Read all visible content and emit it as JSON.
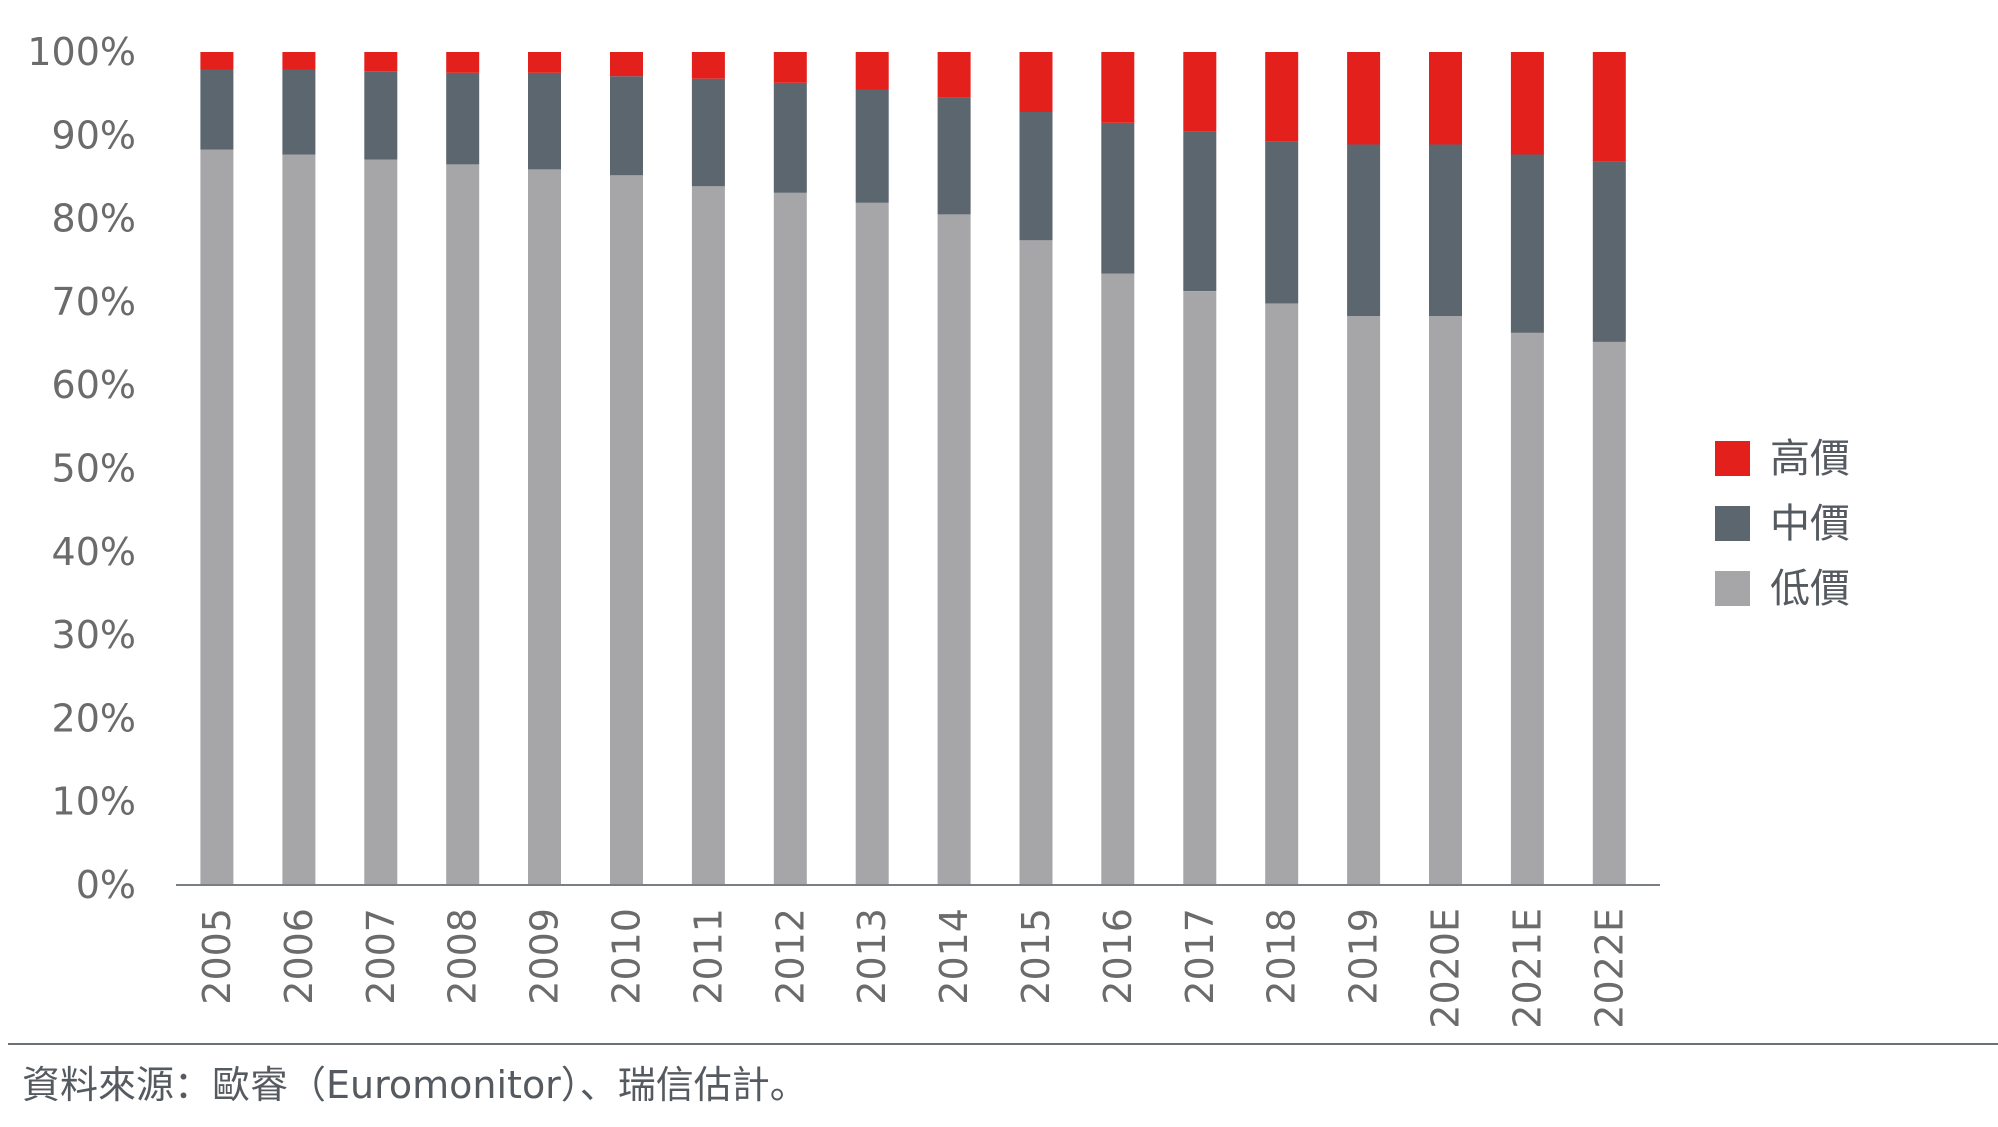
{
  "source_note": "資料來源：歐睿（Euromonitor）、瑞信估計。",
  "chart_data": {
    "type": "bar",
    "stacked": true,
    "categories": [
      "2005",
      "2006",
      "2007",
      "2008",
      "2009",
      "2010",
      "2011",
      "2012",
      "2013",
      "2014",
      "2015",
      "2016",
      "2017",
      "2018",
      "2019",
      "2020E",
      "2021E",
      "2022E"
    ],
    "series": [
      {
        "name": "低價",
        "color": "#a6a6a8",
        "values": [
          88.3,
          87.7,
          87.1,
          86.5,
          85.9,
          85.2,
          83.9,
          83.1,
          81.9,
          80.5,
          77.4,
          73.4,
          71.3,
          69.8,
          68.3,
          68.3,
          66.3,
          65.2
        ]
      },
      {
        "name": "中價",
        "color": "#5b666f",
        "values": [
          9.6,
          10.2,
          10.6,
          11.0,
          11.6,
          11.9,
          12.9,
          13.2,
          13.6,
          14.0,
          15.4,
          18.1,
          19.2,
          19.5,
          20.6,
          20.6,
          21.4,
          21.7
        ]
      },
      {
        "name": "高價",
        "color": "#e3201c",
        "values": [
          2.1,
          2.1,
          2.3,
          2.5,
          2.5,
          2.9,
          3.2,
          3.7,
          4.5,
          5.5,
          7.2,
          8.5,
          9.5,
          10.7,
          11.1,
          11.1,
          12.3,
          13.1
        ]
      }
    ],
    "yticks": [
      "0%",
      "10%",
      "20%",
      "30%",
      "40%",
      "50%",
      "60%",
      "70%",
      "80%",
      "90%",
      "100%"
    ],
    "ylim": [
      0,
      100
    ],
    "legend_order": [
      "高價",
      "中價",
      "低價"
    ],
    "legend_position": "right",
    "grid": false
  }
}
